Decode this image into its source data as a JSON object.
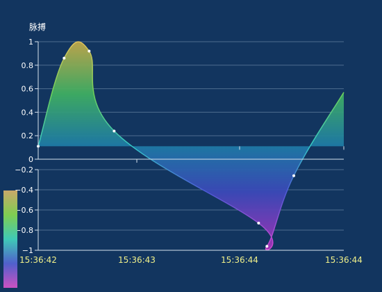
{
  "colors": {
    "background": "#12355f",
    "gridline": "#4e6d8f",
    "axis": "#d7e2ee",
    "tick_y": "#ffffff",
    "tick_x": "#f0f08a",
    "point": "#ffffff",
    "visual_map": [
      "#e4c05a",
      "#7fd04a",
      "#3dd3b7",
      "#4a52c8",
      "#cc3fc7"
    ]
  },
  "chart_data": {
    "type": "area",
    "ylabel": "脉搏",
    "y_axis": {
      "min": -1,
      "max": 1,
      "top_ticks": [
        "1",
        "0.8",
        "0.6",
        "0.4",
        "0.2",
        "0"
      ],
      "bottom_ticks": [
        "−0.2",
        "−0.4",
        "−0.6",
        "−0.8",
        "−1"
      ],
      "top_tick_values": [
        1,
        0.8,
        0.6,
        0.4,
        0.2,
        0
      ],
      "bottom_tick_values": [
        -0.2,
        -0.4,
        -0.6,
        -0.8,
        -1
      ]
    },
    "x_axis": {
      "ticks": [
        "15:36:42",
        "15:36:43",
        "15:36:44",
        "15:36:44"
      ],
      "range": [
        0,
        3.3
      ]
    },
    "series": [
      {
        "smooth": true,
        "points": [
          {
            "x": 0.0,
            "y": 0.11
          },
          {
            "x": 0.28,
            "y": 0.86
          },
          {
            "x": 0.55,
            "y": 0.92
          },
          {
            "x": 0.82,
            "y": 0.24
          },
          {
            "x": 2.38,
            "y": -0.73
          },
          {
            "x": 2.47,
            "y": -0.96
          },
          {
            "x": 2.76,
            "y": -0.26
          },
          {
            "x": 3.3,
            "y": 0.57
          }
        ],
        "marker_indices": [
          0,
          1,
          2,
          3,
          4,
          5,
          6
        ]
      }
    ],
    "grid": true,
    "visual_map": "bottom-left",
    "legend": "none"
  }
}
